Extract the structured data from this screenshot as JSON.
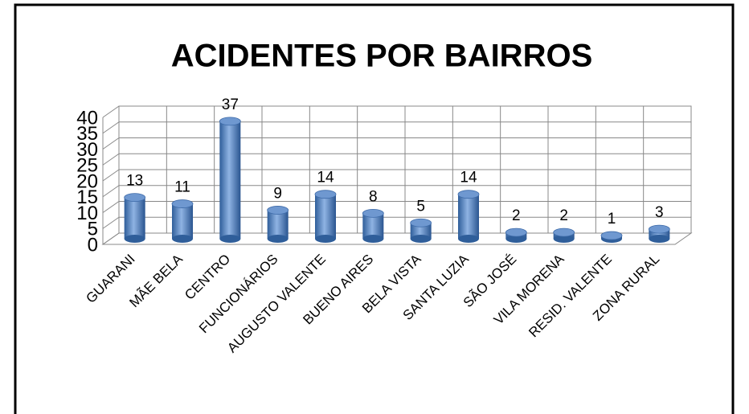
{
  "chart_data": {
    "type": "bar",
    "title": "ACIDENTES POR BAIRROS",
    "categories": [
      "GUARANI",
      "MÃE BELA",
      "CENTRO",
      "FUNCIONÁRIOS",
      "AUGUSTO VALENTE",
      "BUENO AIRES",
      "BELA VISTA",
      "SANTA LUZIA",
      "SÃO JOSÉ",
      "VILA MORENA",
      "RESID. VALENTE",
      "ZONA RURAL"
    ],
    "values": [
      13,
      11,
      37,
      9,
      14,
      8,
      5,
      14,
      2,
      2,
      1,
      3
    ],
    "color": "#4f81bd",
    "ylim": [
      0,
      40
    ],
    "yticks": [
      0,
      5,
      10,
      15,
      20,
      25,
      30,
      35,
      40
    ],
    "grid": true
  }
}
